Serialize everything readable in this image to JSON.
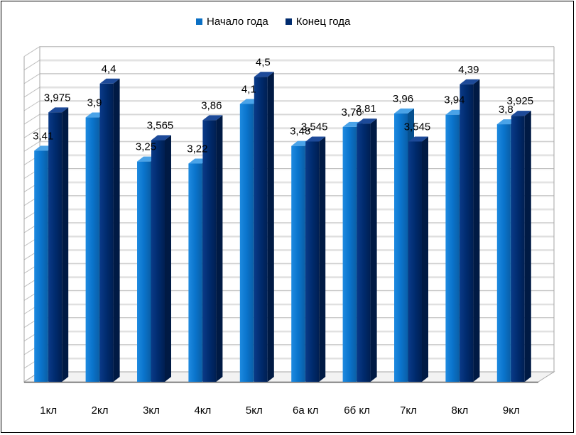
{
  "chart_data": {
    "type": "bar",
    "title": "",
    "xlabel": "",
    "ylabel": "",
    "ylim": [
      0,
      4.8
    ],
    "grid": true,
    "legend_position": "top",
    "categories": [
      "1кл",
      "2кл",
      "3кл",
      "4кл",
      "5кл",
      "6а кл",
      "6б кл",
      "7кл",
      "8кл",
      "9кл"
    ],
    "series": [
      {
        "name": "Начало года",
        "color": "#0a6fc4",
        "values": [
          3.41,
          3.9,
          3.25,
          3.22,
          4.1,
          3.48,
          3.76,
          3.96,
          3.94,
          3.8
        ],
        "labels": [
          "3,41",
          "3,9",
          "3,25",
          "3,22",
          "4,1",
          "3,48",
          "3,76",
          "3,96",
          "3,94",
          "3,8"
        ]
      },
      {
        "name": "Конец года",
        "color": "#002b6e",
        "values": [
          3.975,
          4.4,
          3.565,
          3.86,
          4.5,
          3.545,
          3.81,
          3.545,
          4.39,
          3.925
        ],
        "labels": [
          "3,975",
          "4,4",
          "3,565",
          "3,86",
          "4,5",
          "3,545",
          "3,81",
          "3,545",
          "4,39",
          "3,925"
        ]
      }
    ]
  }
}
